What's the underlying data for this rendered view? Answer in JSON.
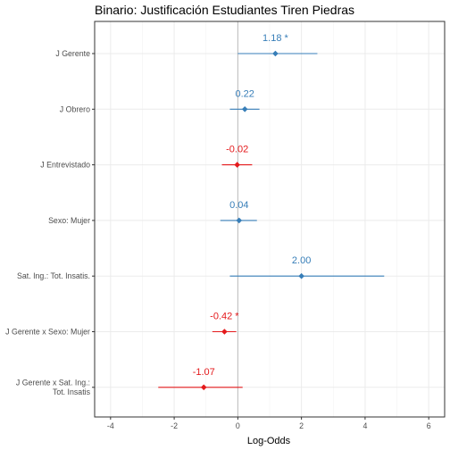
{
  "chart_data": {
    "type": "forest",
    "title": "Binario: Justificación Estudiantes Tiren Piedras",
    "xlabel": "Log-Odds",
    "ylabel": "",
    "xlim": [
      -4.5,
      6.5
    ],
    "x_ticks": [
      "-4",
      "-2",
      "0",
      "2",
      "4",
      "6"
    ],
    "x_tick_values": [
      -4,
      -2,
      0,
      2,
      4,
      6
    ],
    "reference_line": 0,
    "grid": true,
    "colors": {
      "positive": "#377eb8",
      "negative": "#e41a1c"
    },
    "terms": [
      {
        "label": [
          "J Gerente"
        ],
        "estimate": 1.18,
        "low": 0.0,
        "high": 2.5,
        "text": "1.18 *"
      },
      {
        "label": [
          "J Obrero"
        ],
        "estimate": 0.22,
        "low": -0.25,
        "high": 0.68,
        "text": "0.22"
      },
      {
        "label": [
          "J Entrevistado"
        ],
        "estimate": -0.02,
        "low": -0.5,
        "high": 0.45,
        "text": "-0.02"
      },
      {
        "label": [
          "Sexo: Mujer"
        ],
        "estimate": 0.04,
        "low": -0.55,
        "high": 0.6,
        "text": "0.04"
      },
      {
        "label": [
          "Sat. Ing.: Tot. Insatis."
        ],
        "estimate": 2.0,
        "low": -0.25,
        "high": 4.6,
        "text": "2.00"
      },
      {
        "label": [
          "J Gerente x Sexo: Mujer"
        ],
        "estimate": -0.42,
        "low": -0.8,
        "high": -0.05,
        "text": "-0.42 *"
      },
      {
        "label": [
          "J Gerente x Sat. Ing.:",
          "Tot. Insatis"
        ],
        "estimate": -1.07,
        "low": -2.5,
        "high": 0.15,
        "text": "-1.07"
      }
    ]
  }
}
